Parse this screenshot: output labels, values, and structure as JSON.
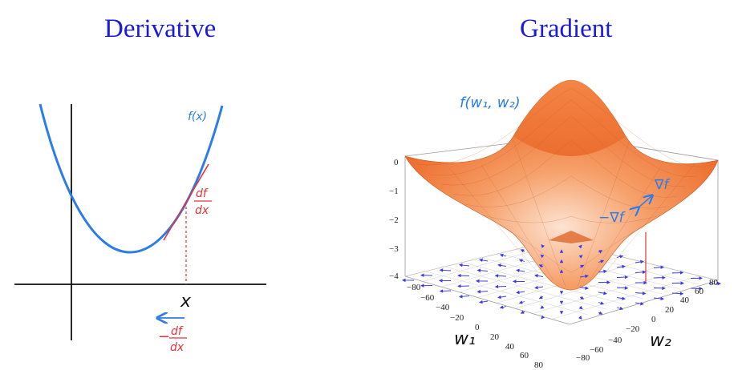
{
  "titles": {
    "left": "Derivative",
    "right": "Gradient"
  },
  "derivative_panel": {
    "curve_label": "f(x)",
    "slope_label_numerator": "df",
    "slope_label_denominator": "dx",
    "x_label": "x",
    "negative_sign": "−",
    "neg_slope_numerator": "df",
    "neg_slope_denominator": "dx",
    "colors": {
      "curve": "#2b7de9",
      "tangent": "#e8323c",
      "axes": "#111111"
    }
  },
  "gradient_panel": {
    "surface_label": "f(w₁, w₂)",
    "grad_label": "∇f",
    "neg_grad_label": "−∇f",
    "w1_label": "w₁",
    "w2_label": "w₂",
    "z_ticks": [
      "0",
      "−1",
      "−2",
      "−3",
      "−4"
    ],
    "w1_ticks": [
      "−80",
      "−60",
      "−40",
      "−20",
      "0",
      "20",
      "40",
      "60",
      "80"
    ],
    "w2_ticks": [
      "−80",
      "−60",
      "−40",
      "−20",
      "0",
      "20",
      "40",
      "60",
      "80"
    ],
    "colors": {
      "surface": "#f07a3a",
      "arrows": "#3a3ae6",
      "annotation": "#2b7de9",
      "marker": "#e8323c"
    }
  }
}
